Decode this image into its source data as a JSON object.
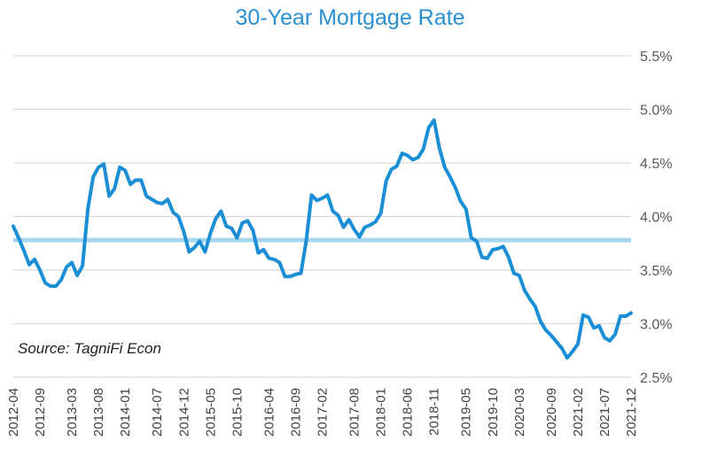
{
  "chart_data": {
    "type": "line",
    "title": "30-Year Mortgage Rate",
    "annotation": "Source: TagniFi Econ",
    "categories": [
      "2012-04",
      null,
      null,
      null,
      null,
      "2012-09",
      null,
      null,
      null,
      null,
      null,
      "2013-03",
      null,
      null,
      null,
      null,
      "2013-08",
      null,
      null,
      null,
      null,
      "2014-01",
      null,
      null,
      null,
      null,
      null,
      "2014-07",
      null,
      null,
      null,
      null,
      "2014-12",
      null,
      null,
      null,
      null,
      "2015-05",
      null,
      null,
      null,
      null,
      "2015-10",
      null,
      null,
      null,
      null,
      null,
      "2016-04",
      null,
      null,
      null,
      null,
      "2016-09",
      null,
      null,
      null,
      null,
      "2017-02",
      null,
      null,
      null,
      null,
      null,
      "2017-08",
      null,
      null,
      null,
      null,
      "2018-01",
      null,
      null,
      null,
      null,
      "2018-06",
      null,
      null,
      null,
      null,
      "2018-11",
      null,
      null,
      null,
      null,
      null,
      "2019-05",
      null,
      null,
      null,
      null,
      "2019-10",
      null,
      null,
      null,
      null,
      "2020-03",
      null,
      null,
      null,
      null,
      null,
      "2020-09",
      null,
      null,
      null,
      null,
      "2021-02",
      null,
      null,
      null,
      null,
      "2021-07",
      null,
      null,
      null,
      null,
      "2021-12"
    ],
    "series": [
      {
        "name": "30-Year Mortgage Rate",
        "color": "#1b8fd6",
        "values": [
          3.91,
          3.8,
          3.68,
          3.55,
          3.6,
          3.5,
          3.38,
          3.35,
          3.35,
          3.41,
          3.53,
          3.57,
          3.45,
          3.54,
          4.07,
          4.37,
          4.46,
          4.49,
          4.19,
          4.26,
          4.46,
          4.43,
          4.3,
          4.34,
          4.34,
          4.19,
          4.16,
          4.13,
          4.12,
          4.16,
          4.04,
          4.0,
          3.86,
          3.67,
          3.71,
          3.77,
          3.67,
          3.84,
          3.98,
          4.05,
          3.91,
          3.89,
          3.8,
          3.94,
          3.96,
          3.87,
          3.66,
          3.69,
          3.61,
          3.6,
          3.57,
          3.44,
          3.44,
          3.46,
          3.47,
          3.77,
          4.2,
          4.15,
          4.17,
          4.2,
          4.05,
          4.01,
          3.9,
          3.97,
          3.88,
          3.81,
          3.9,
          3.92,
          3.95,
          4.03,
          4.33,
          4.44,
          4.47,
          4.59,
          4.57,
          4.53,
          4.55,
          4.63,
          4.83,
          4.9,
          4.64,
          4.46,
          4.37,
          4.27,
          4.14,
          4.07,
          3.8,
          3.77,
          3.62,
          3.61,
          3.69,
          3.7,
          3.72,
          3.62,
          3.47,
          3.45,
          3.31,
          3.23,
          3.16,
          3.02,
          2.94,
          2.89,
          2.83,
          2.77,
          2.68,
          2.74,
          2.81,
          3.08,
          3.06,
          2.96,
          2.98,
          2.87,
          2.84,
          2.9,
          3.07,
          3.07,
          3.1
        ]
      }
    ],
    "reference_line": {
      "value": 3.78,
      "color": "#a6d6f0"
    },
    "ylim": [
      2.5,
      5.5
    ],
    "yticks": [
      {
        "value": 2.5,
        "label": "2.5%"
      },
      {
        "value": 3.0,
        "label": "3.0%"
      },
      {
        "value": 3.5,
        "label": "3.5%"
      },
      {
        "value": 4.0,
        "label": "4.0%"
      },
      {
        "value": 4.5,
        "label": "4.5%"
      },
      {
        "value": 5.0,
        "label": "5.0%"
      },
      {
        "value": 5.5,
        "label": "5.5%"
      }
    ],
    "grid": true
  }
}
